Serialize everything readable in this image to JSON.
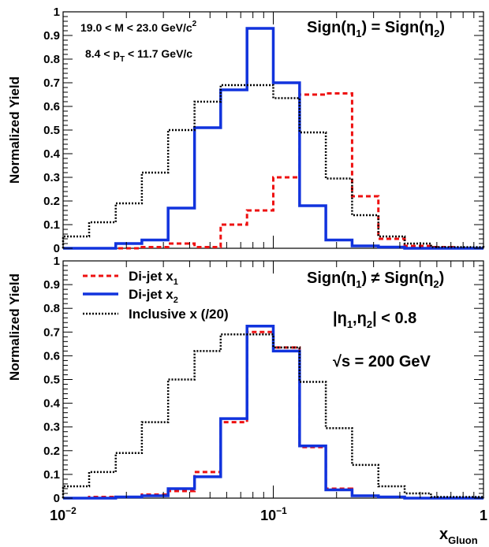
{
  "chart_data": [
    {
      "type": "line",
      "step": true,
      "xscale": "log",
      "xlim": [
        0.01,
        1
      ],
      "ylim": [
        0,
        1
      ],
      "ylabel": "Normalized Yield",
      "yticks": [
        "0",
        "0.1",
        "0.2",
        "0.3",
        "0.4",
        "0.5",
        "0.6",
        "0.7",
        "0.8",
        "0.9",
        "1"
      ],
      "annotations": {
        "mass_cut": "19.0 < M < 23.0 GeV/c",
        "mass_cut_sup": "2",
        "pt_cut": "8.4 < p",
        "pt_cut_sub": "T",
        "pt_cut_tail": " < 11.7 GeV/c",
        "sign_pre": "Sign(η",
        "sign_sub1": "1",
        "sign_mid": ") = Sign(η",
        "sign_sub2": "2",
        "sign_post": ")"
      },
      "bin_edges": [
        0.01,
        0.0133,
        0.0178,
        0.0237,
        0.0316,
        0.0422,
        0.0562,
        0.075,
        0.1,
        0.1334,
        0.1778,
        0.2371,
        0.3162,
        0.4217,
        0.5623,
        0.75,
        1
      ],
      "series": [
        {
          "key": "x1",
          "color": "#ee1111",
          "dash": "6,4",
          "width": 3,
          "values": [
            0.0,
            0.0,
            0.0,
            0.005,
            0.02,
            0.005,
            0.1,
            0.16,
            0.3,
            0.65,
            0.655,
            0.22,
            0.04,
            0.01,
            0.005,
            0.0
          ]
        },
        {
          "key": "x2",
          "color": "#1133dd",
          "dash": "",
          "width": 3.5,
          "values": [
            0.0,
            0.0,
            0.02,
            0.035,
            0.17,
            0.51,
            0.67,
            0.93,
            0.7,
            0.18,
            0.035,
            0.01,
            0.005,
            0.0,
            0.0,
            0.0
          ]
        },
        {
          "key": "inclusive",
          "color": "#000000",
          "dash": "2,2",
          "width": 2.5,
          "values": [
            0.05,
            0.11,
            0.19,
            0.32,
            0.5,
            0.62,
            0.69,
            0.69,
            0.635,
            0.49,
            0.295,
            0.14,
            0.05,
            0.02,
            0.005,
            0.005
          ]
        }
      ]
    },
    {
      "type": "line",
      "step": true,
      "xscale": "log",
      "xlim": [
        0.01,
        1
      ],
      "ylim": [
        0,
        1
      ],
      "ylabel": "Normalized Yield",
      "xlabel": "x",
      "xlabel_sub": "Gluon",
      "yticks": [
        "0",
        "0.1",
        "0.2",
        "0.3",
        "0.4",
        "0.5",
        "0.6",
        "0.7",
        "0.8",
        "0.9",
        "1"
      ],
      "xticks": [
        {
          "base": "10",
          "exp": "−2"
        },
        {
          "base": "10",
          "exp": "−1"
        },
        {
          "base": "1",
          "exp": ""
        }
      ],
      "annotations": {
        "sign_pre": "Sign(η",
        "sign_sub1": "1",
        "sign_mid": ") ≠ Sign(η",
        "sign_sub2": "2",
        "sign_post": ")",
        "eta_pre": "|η",
        "eta_sub1": "1",
        "eta_mid": ",η",
        "eta_sub2": "2",
        "eta_post": "| < 0.8",
        "sqrt_sym": "√",
        "sqrts": "s = 200 GeV"
      },
      "legend": {
        "position": "top-left",
        "entries": [
          {
            "key": "x1",
            "label": "Di-jet x",
            "sub": "1"
          },
          {
            "key": "x2",
            "label": "Di-jet x",
            "sub": "2"
          },
          {
            "key": "inclusive",
            "label": "Inclusive x (/20)",
            "sub": ""
          }
        ]
      },
      "bin_edges": [
        0.01,
        0.0133,
        0.0178,
        0.0237,
        0.0316,
        0.0422,
        0.0562,
        0.075,
        0.1,
        0.1334,
        0.1778,
        0.2371,
        0.3162,
        0.4217,
        0.5623,
        0.75,
        1
      ],
      "series": [
        {
          "key": "x1",
          "color": "#ee1111",
          "dash": "6,4",
          "width": 3,
          "values": [
            0.0,
            0.005,
            0.005,
            0.015,
            0.03,
            0.11,
            0.32,
            0.7,
            0.635,
            0.215,
            0.04,
            0.01,
            0.005,
            0.0,
            0.0,
            0.0
          ]
        },
        {
          "key": "x2",
          "color": "#1133dd",
          "dash": "",
          "width": 3.5,
          "values": [
            0.0,
            0.0,
            0.005,
            0.01,
            0.04,
            0.09,
            0.335,
            0.725,
            0.62,
            0.22,
            0.035,
            0.01,
            0.005,
            0.0,
            0.0,
            0.0
          ]
        },
        {
          "key": "inclusive",
          "color": "#000000",
          "dash": "2,2",
          "width": 2.5,
          "values": [
            0.05,
            0.11,
            0.19,
            0.32,
            0.5,
            0.62,
            0.69,
            0.69,
            0.635,
            0.49,
            0.295,
            0.14,
            0.05,
            0.02,
            0.005,
            0.005
          ]
        }
      ]
    }
  ]
}
